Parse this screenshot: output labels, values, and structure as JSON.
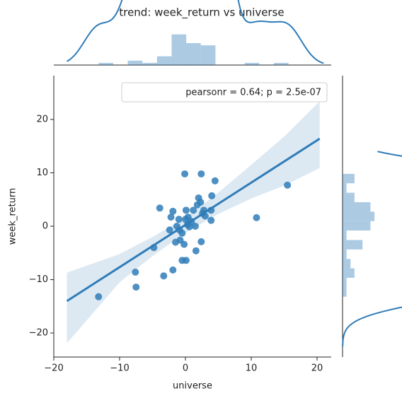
{
  "chart_data": {
    "type": "jointplot",
    "title": "trend: week_return vs universe",
    "x_label": "universe",
    "y_label": "week_return",
    "annotation": "pearsonr = 0.64; p = 2.5e-07",
    "color": "#2f7cb8",
    "x": [
      -13.2,
      -7.6,
      -7.5,
      -4.8,
      -3.9,
      -3.3,
      -1.9,
      -2.4,
      -2.2,
      -1.9,
      -1.5,
      -1.3,
      -1.0,
      -0.9,
      -0.8,
      -0.5,
      -0.5,
      -0.2,
      -0.1,
      0,
      0.1,
      0.1,
      0.3,
      0.4,
      0.6,
      0.9,
      1.2,
      1.5,
      1.6,
      1.8,
      2.0,
      2.3,
      2.4,
      2.4,
      2.6,
      2.8,
      3.0,
      3.9,
      3.9,
      4.0,
      4.5,
      10.8,
      15.5
    ],
    "values": [
      -13.2,
      -8.6,
      -11.4,
      -4.0,
      3.4,
      -9.3,
      -8.2,
      -0.7,
      1.7,
      2.8,
      -3.0,
      0,
      1.3,
      -0.7,
      -2.6,
      -1.3,
      -6.4,
      -3.4,
      9.8,
      1.3,
      -6.4,
      3.0,
      0.3,
      1.7,
      -0.1,
      0.9,
      3.0,
      0,
      -4.6,
      4.0,
      5.3,
      4.5,
      9.8,
      -2.9,
      2.4,
      3.0,
      1.9,
      1.1,
      3.0,
      5.7,
      8.5,
      1.6,
      7.7
    ],
    "regression": {
      "x": [
        -18,
        20.4
      ],
      "y": [
        -14,
        16.4
      ]
    },
    "ci": {
      "x": [
        -18,
        -10,
        -5,
        0,
        5,
        10,
        15,
        20.4
      ],
      "lower": [
        -21.9,
        -10.5,
        -5.6,
        -1.2,
        2.3,
        5.2,
        7.6,
        10.9
      ],
      "upper": [
        -8.7,
        -5.2,
        -2.0,
        1.6,
        6.3,
        11.5,
        16.8,
        23.4
      ]
    },
    "xlim": [
      -20,
      22.15
    ],
    "ylim": [
      -24.5,
      28.2
    ],
    "xticks": [
      {
        "value": -20,
        "label": "−20"
      },
      {
        "value": -10,
        "label": "−10"
      },
      0,
      10,
      20
    ],
    "yticks": [
      {
        "value": -20,
        "label": "−20"
      },
      {
        "value": -10,
        "label": "−10"
      },
      0,
      10,
      20
    ],
    "marginal_x": {
      "bins": [
        -13.2,
        -10.98,
        -8.76,
        -6.54,
        -4.32,
        -2.1,
        0.12,
        2.34,
        4.56,
        6.78,
        9.0,
        11.22,
        13.44,
        15.66
      ],
      "counts": [
        1,
        0,
        2,
        1,
        4,
        14,
        10,
        9,
        0,
        0,
        1,
        0,
        1
      ],
      "lim": [
        0,
        20
      ]
    },
    "marginal_y": {
      "bins": [
        -13.2,
        -11.43,
        -9.66,
        -7.89,
        -6.12,
        -4.35,
        -2.58,
        -0.81,
        0.96,
        2.73,
        4.5,
        6.27,
        8.04,
        9.81
      ],
      "counts": [
        1,
        1,
        3,
        2,
        1,
        5,
        1,
        7,
        8,
        7,
        3,
        1,
        3
      ],
      "lim": [
        0,
        11
      ]
    }
  }
}
